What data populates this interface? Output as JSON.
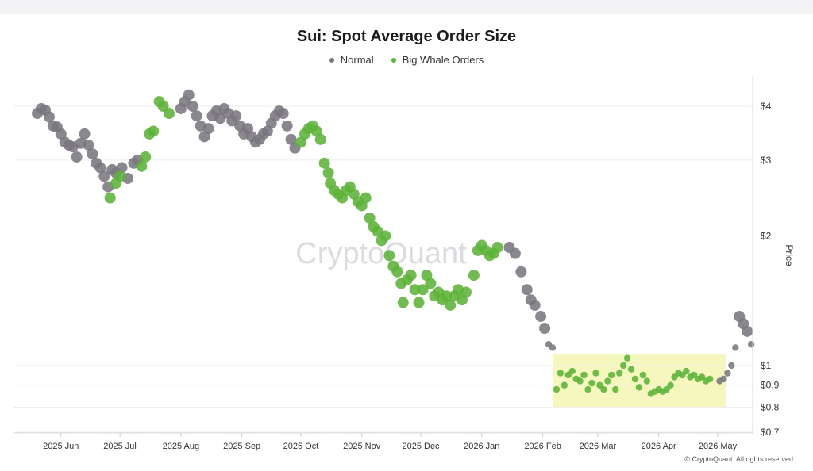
{
  "title": "Sui: Spot Average Order Size",
  "legend": [
    {
      "label": "Normal",
      "color": "#7a7680"
    },
    {
      "label": "Big Whale Orders",
      "color": "#5cb338"
    }
  ],
  "watermark": "CryptoQuant",
  "copyright": "© CryptoQuant. All rights reserved",
  "chart_data": {
    "type": "scatter",
    "title": "Sui: Spot Average Order Size",
    "xlabel": "",
    "ylabel": "Price",
    "y_scale": "log",
    "ylim": [
      0.7,
      4.6
    ],
    "x_ticks": [
      "2025 Jun",
      "2025 Jul",
      "2025 Aug",
      "2025 Sep",
      "2025 Oct",
      "2025 Nov",
      "2025 Dec",
      "2026 Jan",
      "2026 Feb",
      "2026 Mar",
      "2026 Apr",
      "2026 May"
    ],
    "y_ticks": [
      {
        "value": 4,
        "label": "$4"
      },
      {
        "value": 3,
        "label": "$3"
      },
      {
        "value": 2,
        "label": "$2"
      },
      {
        "value": 1,
        "label": "$1"
      },
      {
        "value": 0.9,
        "label": "$0.9"
      },
      {
        "value": 0.8,
        "label": "$0.8"
      },
      {
        "value": 0.7,
        "label": "$0.7"
      }
    ],
    "highlight": {
      "x_start": "2026-02-06",
      "x_end": "2026-05-05",
      "y_low": 0.8,
      "y_high": 1.06,
      "color": "#f5f7bf"
    },
    "series": [
      {
        "name": "Normal",
        "color": "#7a7680",
        "points": [
          [
            "2025-05-20",
            3.85
          ],
          [
            "2025-05-22",
            3.95
          ],
          [
            "2025-05-24",
            3.92
          ],
          [
            "2025-05-26",
            3.78
          ],
          [
            "2025-05-28",
            3.6
          ],
          [
            "2025-05-30",
            3.58
          ],
          [
            "2025-06-01",
            3.45
          ],
          [
            "2025-06-03",
            3.3
          ],
          [
            "2025-06-05",
            3.25
          ],
          [
            "2025-06-07",
            3.22
          ],
          [
            "2025-06-09",
            3.05
          ],
          [
            "2025-06-11",
            3.28
          ],
          [
            "2025-06-13",
            3.45
          ],
          [
            "2025-06-15",
            3.25
          ],
          [
            "2025-06-17",
            3.1
          ],
          [
            "2025-06-19",
            2.95
          ],
          [
            "2025-06-21",
            2.88
          ],
          [
            "2025-06-23",
            2.75
          ],
          [
            "2025-06-25",
            2.6
          ],
          [
            "2025-06-27",
            2.85
          ],
          [
            "2025-06-29",
            2.8
          ],
          [
            "2025-07-02",
            2.88
          ],
          [
            "2025-07-05",
            2.72
          ],
          [
            "2025-07-08",
            2.95
          ],
          [
            "2025-07-10",
            3.0
          ],
          [
            "2025-08-01",
            3.95
          ],
          [
            "2025-08-03",
            4.1
          ],
          [
            "2025-08-05",
            4.25
          ],
          [
            "2025-08-07",
            4.0
          ],
          [
            "2025-08-09",
            3.8
          ],
          [
            "2025-08-11",
            3.6
          ],
          [
            "2025-08-13",
            3.4
          ],
          [
            "2025-08-15",
            3.55
          ],
          [
            "2025-08-17",
            3.8
          ],
          [
            "2025-08-19",
            3.9
          ],
          [
            "2025-08-21",
            3.75
          ],
          [
            "2025-08-23",
            3.95
          ],
          [
            "2025-08-25",
            3.85
          ],
          [
            "2025-08-27",
            3.7
          ],
          [
            "2025-08-29",
            3.8
          ],
          [
            "2025-08-31",
            3.6
          ],
          [
            "2025-09-02",
            3.45
          ],
          [
            "2025-09-04",
            3.55
          ],
          [
            "2025-09-06",
            3.4
          ],
          [
            "2025-09-08",
            3.3
          ],
          [
            "2025-09-10",
            3.35
          ],
          [
            "2025-09-12",
            3.45
          ],
          [
            "2025-09-14",
            3.5
          ],
          [
            "2025-09-16",
            3.65
          ],
          [
            "2025-09-18",
            3.8
          ],
          [
            "2025-09-20",
            3.9
          ],
          [
            "2025-09-22",
            3.85
          ],
          [
            "2025-09-24",
            3.6
          ],
          [
            "2025-09-26",
            3.35
          ],
          [
            "2025-09-28",
            3.2
          ],
          [
            "2026-01-15",
            1.88
          ],
          [
            "2026-01-18",
            1.82
          ],
          [
            "2026-01-21",
            1.65
          ],
          [
            "2026-01-24",
            1.5
          ],
          [
            "2026-01-26",
            1.42
          ],
          [
            "2026-01-28",
            1.38
          ],
          [
            "2026-01-31",
            1.3
          ],
          [
            "2026-02-02",
            1.22
          ],
          [
            "2026-02-04",
            1.12
          ],
          [
            "2026-02-06",
            1.1
          ],
          [
            "2026-05-02",
            0.92
          ],
          [
            "2026-05-04",
            0.93
          ],
          [
            "2026-05-06",
            0.96
          ],
          [
            "2026-05-08",
            1.0
          ],
          [
            "2026-05-10",
            1.1
          ],
          [
            "2026-05-12",
            1.3
          ],
          [
            "2026-05-14",
            1.25
          ],
          [
            "2026-05-16",
            1.2
          ],
          [
            "2026-05-18",
            1.12
          ]
        ]
      },
      {
        "name": "Big Whale Orders",
        "color": "#5cb338",
        "points": [
          [
            "2025-06-26",
            2.45
          ],
          [
            "2025-06-29",
            2.65
          ],
          [
            "2025-07-01",
            2.75
          ],
          [
            "2025-07-12",
            2.9
          ],
          [
            "2025-07-14",
            3.05
          ],
          [
            "2025-07-16",
            3.45
          ],
          [
            "2025-07-18",
            3.5
          ],
          [
            "2025-07-21",
            4.1
          ],
          [
            "2025-07-23",
            4.0
          ],
          [
            "2025-07-26",
            3.85
          ],
          [
            "2025-10-01",
            3.3
          ],
          [
            "2025-10-03",
            3.45
          ],
          [
            "2025-10-05",
            3.55
          ],
          [
            "2025-10-07",
            3.6
          ],
          [
            "2025-10-09",
            3.5
          ],
          [
            "2025-10-11",
            3.35
          ],
          [
            "2025-10-13",
            2.95
          ],
          [
            "2025-10-15",
            2.8
          ],
          [
            "2025-10-16",
            2.65
          ],
          [
            "2025-10-18",
            2.55
          ],
          [
            "2025-10-20",
            2.5
          ],
          [
            "2025-10-22",
            2.45
          ],
          [
            "2025-10-24",
            2.55
          ],
          [
            "2025-10-26",
            2.6
          ],
          [
            "2025-10-28",
            2.5
          ],
          [
            "2025-10-30",
            2.4
          ],
          [
            "2025-11-01",
            2.35
          ],
          [
            "2025-11-03",
            2.45
          ],
          [
            "2025-11-05",
            2.2
          ],
          [
            "2025-11-07",
            2.1
          ],
          [
            "2025-11-09",
            2.05
          ],
          [
            "2025-11-11",
            1.95
          ],
          [
            "2025-11-13",
            2.0
          ],
          [
            "2025-11-15",
            1.8
          ],
          [
            "2025-11-17",
            1.7
          ],
          [
            "2025-11-19",
            1.65
          ],
          [
            "2025-11-21",
            1.55
          ],
          [
            "2025-11-22",
            1.4
          ],
          [
            "2025-11-24",
            1.58
          ],
          [
            "2025-11-26",
            1.62
          ],
          [
            "2025-11-28",
            1.5
          ],
          [
            "2025-11-30",
            1.4
          ],
          [
            "2025-12-02",
            1.5
          ],
          [
            "2025-12-04",
            1.62
          ],
          [
            "2025-12-06",
            1.55
          ],
          [
            "2025-12-08",
            1.45
          ],
          [
            "2025-12-10",
            1.48
          ],
          [
            "2025-12-12",
            1.42
          ],
          [
            "2025-12-14",
            1.45
          ],
          [
            "2025-12-16",
            1.38
          ],
          [
            "2025-12-18",
            1.45
          ],
          [
            "2025-12-20",
            1.5
          ],
          [
            "2025-12-22",
            1.42
          ],
          [
            "2025-12-24",
            1.48
          ],
          [
            "2025-12-28",
            1.62
          ],
          [
            "2025-12-30",
            1.85
          ],
          [
            "2026-01-01",
            1.9
          ],
          [
            "2026-01-03",
            1.85
          ],
          [
            "2026-01-05",
            1.8
          ],
          [
            "2026-01-07",
            1.82
          ],
          [
            "2026-01-09",
            1.88
          ],
          [
            "2026-02-08",
            0.88
          ],
          [
            "2026-02-10",
            0.96
          ],
          [
            "2026-02-12",
            0.9
          ],
          [
            "2026-02-14",
            0.95
          ],
          [
            "2026-02-16",
            0.97
          ],
          [
            "2026-02-18",
            0.93
          ],
          [
            "2026-02-20",
            0.92
          ],
          [
            "2026-02-22",
            0.95
          ],
          [
            "2026-02-24",
            0.88
          ],
          [
            "2026-02-26",
            0.91
          ],
          [
            "2026-02-28",
            0.96
          ],
          [
            "2026-03-02",
            0.9
          ],
          [
            "2026-03-04",
            0.88
          ],
          [
            "2026-03-06",
            0.92
          ],
          [
            "2026-03-08",
            0.95
          ],
          [
            "2026-03-10",
            0.88
          ],
          [
            "2026-03-12",
            0.96
          ],
          [
            "2026-03-14",
            1.0
          ],
          [
            "2026-03-16",
            1.04
          ],
          [
            "2026-03-18",
            0.98
          ],
          [
            "2026-03-20",
            0.93
          ],
          [
            "2026-03-22",
            0.89
          ],
          [
            "2026-03-24",
            0.95
          ],
          [
            "2026-03-26",
            0.92
          ],
          [
            "2026-03-28",
            0.86
          ],
          [
            "2026-03-30",
            0.87
          ],
          [
            "2026-04-01",
            0.88
          ],
          [
            "2026-04-03",
            0.87
          ],
          [
            "2026-04-05",
            0.88
          ],
          [
            "2026-04-07",
            0.9
          ],
          [
            "2026-04-09",
            0.94
          ],
          [
            "2026-04-11",
            0.96
          ],
          [
            "2026-04-13",
            0.95
          ],
          [
            "2026-04-15",
            0.97
          ],
          [
            "2026-04-17",
            0.94
          ],
          [
            "2026-04-19",
            0.95
          ],
          [
            "2026-04-21",
            0.93
          ],
          [
            "2026-04-23",
            0.94
          ],
          [
            "2026-04-25",
            0.92
          ],
          [
            "2026-04-27",
            0.93
          ]
        ]
      }
    ]
  }
}
